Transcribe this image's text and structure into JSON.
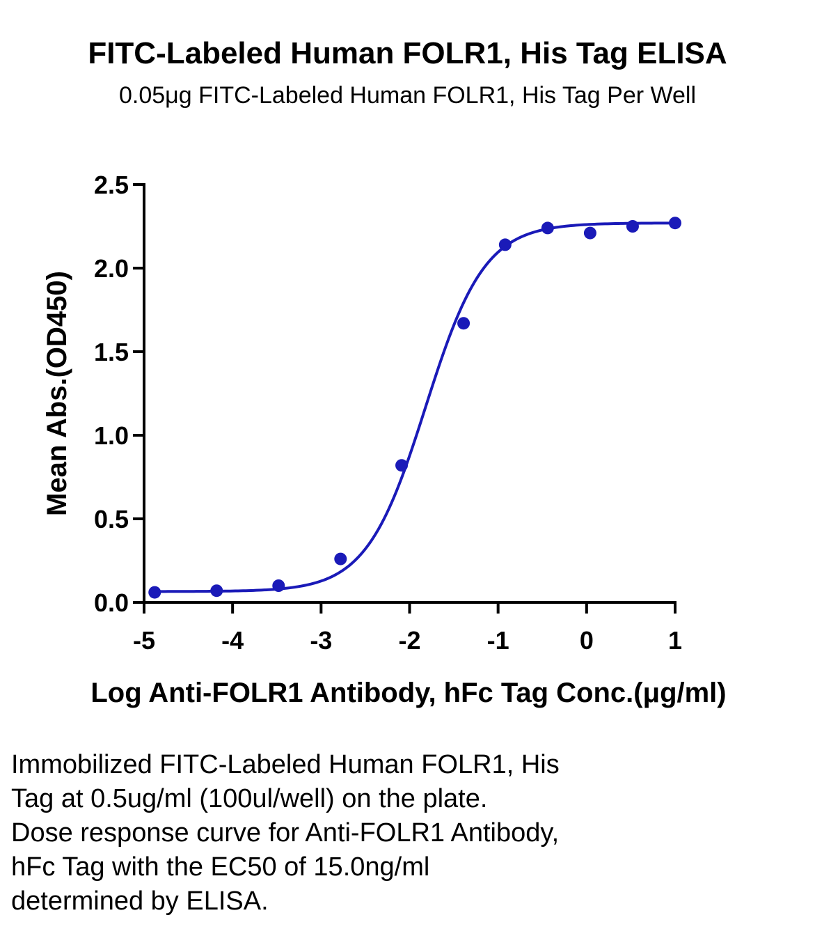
{
  "chart_data": {
    "type": "scatter",
    "title": "FITC-Labeled Human FOLR1, His Tag ELISA",
    "subtitle": "0.05μg FITC-Labeled Human FOLR1, His Tag Per Well",
    "xlabel": "Log Anti-FOLR1 Antibody, hFc Tag Conc.(μg/ml)",
    "ylabel": "Mean Abs.(OD450)",
    "xlim": [
      -5,
      1
    ],
    "ylim": [
      0,
      2.5
    ],
    "x_ticks": [
      "-5",
      "-4",
      "-3",
      "-2",
      "-1",
      "0",
      "1"
    ],
    "y_ticks": [
      "0.0",
      "0.5",
      "1.0",
      "1.5",
      "2.0",
      "2.5"
    ],
    "grid": false,
    "series": [
      {
        "color": "#1a1ab8",
        "points": [
          {
            "x": -4.88,
            "y": 0.06
          },
          {
            "x": -4.18,
            "y": 0.07
          },
          {
            "x": -3.48,
            "y": 0.1
          },
          {
            "x": -2.78,
            "y": 0.26
          },
          {
            "x": -2.09,
            "y": 0.82
          },
          {
            "x": -1.39,
            "y": 1.67
          },
          {
            "x": -0.92,
            "y": 2.14
          },
          {
            "x": -0.44,
            "y": 2.24
          },
          {
            "x": 0.04,
            "y": 2.21
          },
          {
            "x": 0.52,
            "y": 2.25
          },
          {
            "x": 1.0,
            "y": 2.27
          }
        ]
      }
    ],
    "fit": {
      "model": "four-parameter logistic",
      "bottom": 0.065,
      "top": 2.27,
      "log_ec50": -1.82,
      "hill_slope": 1.3
    }
  },
  "caption": {
    "lines": [
      "Immobilized FITC-Labeled Human FOLR1, His",
      "Tag at 0.5ug/ml (100ul/well) on the plate.",
      "Dose response curve for Anti-FOLR1 Antibody,",
      "hFc Tag with the EC50 of 15.0ng/ml",
      "determined by ELISA."
    ]
  }
}
